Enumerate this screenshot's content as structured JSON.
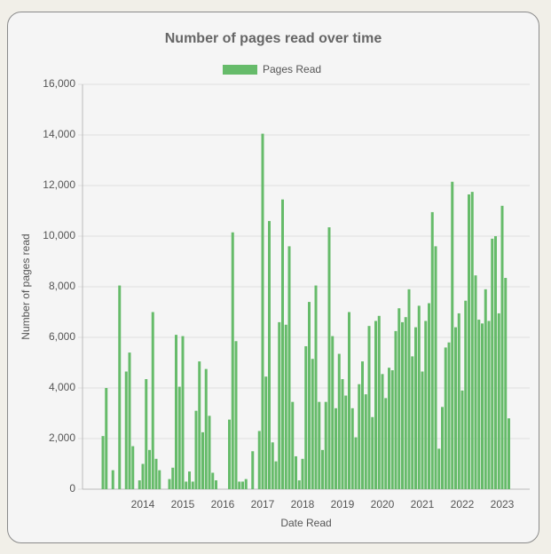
{
  "chart_data": {
    "type": "bar",
    "title": "Number of pages read over time",
    "x_label": "Date Read",
    "y_label": "Number of pages read",
    "series": [
      {
        "name": "Pages Read",
        "color": "#66bb6a",
        "values": [
          2100,
          4000,
          0,
          750,
          0,
          8050,
          0,
          4650,
          5400,
          1700,
          0,
          350,
          1000,
          4350,
          1550,
          7000,
          1200,
          750,
          0,
          0,
          400,
          850,
          6100,
          4050,
          6050,
          300,
          700,
          300,
          3100,
          5050,
          2250,
          4750,
          2900,
          650,
          350,
          0,
          0,
          0,
          2750,
          10150,
          5850,
          300,
          300,
          400,
          0,
          1500,
          0,
          2300,
          14050,
          4450,
          10600,
          1850,
          1100,
          6600,
          11450,
          6500,
          9600,
          3450,
          1300,
          350,
          1200,
          5650,
          7400,
          5150,
          8050,
          3450,
          1550,
          3450,
          10350,
          6050,
          3200,
          5350,
          4350,
          3700,
          7000,
          3200,
          2050,
          4150,
          5050,
          3750,
          6450,
          2850,
          6650,
          6850,
          4550,
          3600,
          4800,
          4700,
          6250,
          7150,
          6600,
          6800,
          7900,
          5250,
          6400,
          7250,
          4650,
          6650,
          7350,
          10950,
          9600,
          1600,
          3250,
          5600,
          5800,
          12150,
          6400,
          6950,
          3900,
          7450,
          11650,
          11750,
          8450,
          6700,
          6550,
          7900,
          6650,
          9900,
          10000,
          6950,
          11200,
          8350,
          2800
        ]
      }
    ],
    "categories": [
      null,
      null,
      null,
      null,
      null,
      null,
      null,
      null,
      null,
      null,
      null,
      null,
      "2014",
      null,
      null,
      null,
      null,
      null,
      null,
      null,
      null,
      null,
      null,
      null,
      "2015",
      null,
      null,
      null,
      null,
      null,
      null,
      null,
      null,
      null,
      null,
      null,
      "2016",
      null,
      null,
      null,
      null,
      null,
      null,
      null,
      null,
      null,
      null,
      null,
      "2017",
      null,
      null,
      null,
      null,
      null,
      null,
      null,
      null,
      null,
      null,
      null,
      "2018",
      null,
      null,
      null,
      null,
      null,
      null,
      null,
      null,
      null,
      null,
      null,
      "2019",
      null,
      null,
      null,
      null,
      null,
      null,
      null,
      null,
      null,
      null,
      null,
      "2020",
      null,
      null,
      null,
      null,
      null,
      null,
      null,
      null,
      null,
      null,
      null,
      "2021",
      null,
      null,
      null,
      null,
      null,
      null,
      null,
      null,
      null,
      null,
      null,
      "2022",
      null,
      null,
      null,
      null,
      null,
      null,
      null,
      null,
      null,
      null,
      null,
      "2023",
      null,
      null
    ],
    "ylim": [
      0,
      16000
    ],
    "yticks": [
      0,
      {
        "value": 2000,
        "label": "2,000"
      },
      {
        "value": 4000,
        "label": "4,000"
      },
      {
        "value": 6000,
        "label": "6,000"
      },
      {
        "value": 8000,
        "label": "8,000"
      },
      {
        "value": 10000,
        "label": "10,000"
      },
      {
        "value": 12000,
        "label": "12,000"
      },
      {
        "value": 14000,
        "label": "14,000"
      },
      {
        "value": 16000,
        "label": "16,000"
      }
    ],
    "grid": true,
    "legend": "top"
  }
}
